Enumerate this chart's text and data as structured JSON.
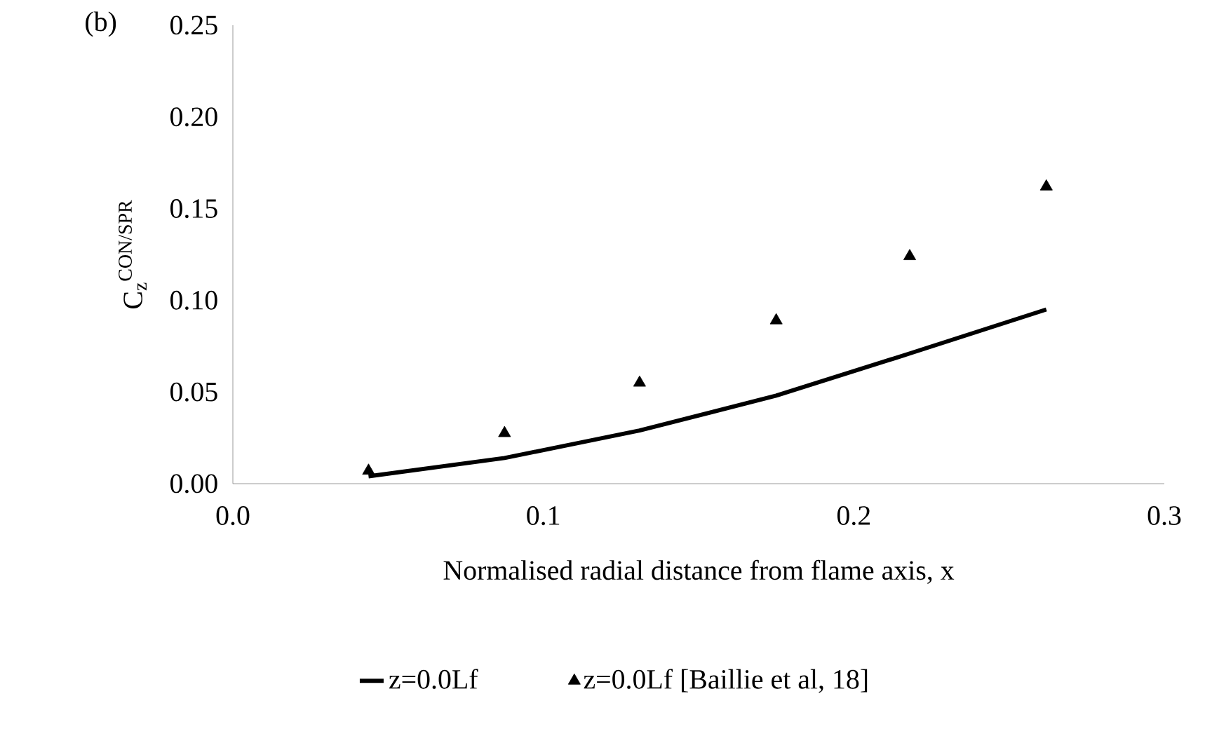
{
  "chart_data": {
    "type": "line",
    "xlabel": "Normalised radial distance from flame axis, x",
    "ylabel": "C$_{z}$$^{CON/SPR}$",
    "annotations": [
      "(b)"
    ],
    "xlim": [
      0,
      0.3
    ],
    "xticks": [
      {
        "value": 0,
        "label": "0.0"
      },
      0.1,
      0.2,
      0.3
    ],
    "ylim": [
      0,
      0.25
    ],
    "yticks": [
      {
        "value": 0,
        "label": "0.00"
      },
      0.05,
      {
        "value": 0.1,
        "label": "0.10"
      },
      0.15,
      {
        "value": 0.2,
        "label": "0.20"
      },
      0.25
    ],
    "grid": false,
    "legend": "bottom",
    "series": [
      {
        "name": "z=0.0Lf",
        "color": "#000000",
        "marker": "none",
        "line_style": "solid",
        "x": [
          0.0437,
          0.0875,
          0.131,
          0.175,
          0.218,
          0.262
        ],
        "values": [
          0.004,
          0.014,
          0.029,
          0.048,
          0.071,
          0.095
        ]
      },
      {
        "name": "z=0.0Lf [Baillie et al, 18]",
        "type": "scatter",
        "color": "#000000",
        "marker": "triangle",
        "x": [
          0.0437,
          0.0875,
          0.131,
          0.175,
          0.218,
          0.262
        ],
        "values": [
          0.007,
          0.0275,
          0.055,
          0.089,
          0.124,
          0.162
        ]
      }
    ]
  }
}
